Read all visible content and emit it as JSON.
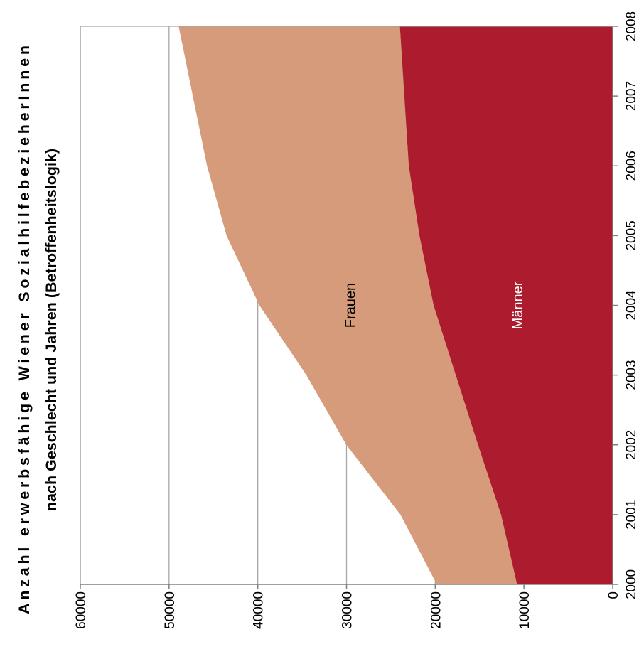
{
  "chart_data": {
    "type": "area",
    "orientation": "rotated-90-clockwise",
    "title_lines": [
      "Anzahl erwerbsfähige Wiener SozialhilfebezieherInnen",
      "nach Geschlecht und Jahren (Betroffenheitslogik)"
    ],
    "xlabel": "",
    "ylabel": "",
    "stacked": true,
    "x": [
      2000,
      2001,
      2002,
      2003,
      2004,
      2005,
      2006,
      2007,
      2008
    ],
    "x_tick_labels": [
      "2000",
      "2001",
      "2002",
      "2003",
      "2004",
      "2005",
      "2006",
      "2007",
      "2008"
    ],
    "ylim": [
      0,
      60000
    ],
    "y_ticks": [
      0,
      10000,
      20000,
      30000,
      40000,
      50000,
      60000
    ],
    "y_tick_labels": [
      "0",
      "10000",
      "20000",
      "30000",
      "40000",
      "50000",
      "60000"
    ],
    "grid": true,
    "series": [
      {
        "name": "Männer",
        "values": [
          10800,
          12600,
          15200,
          17700,
          20200,
          21800,
          23000,
          23500,
          24000
        ],
        "color": "#ad1c2e",
        "label_color": "#ffffff"
      },
      {
        "name": "Frauen",
        "values": [
          9000,
          11300,
          14800,
          16800,
          19600,
          21700,
          22700,
          23800,
          24900
        ],
        "color": "#d69b7a",
        "label_color": "#000000"
      }
    ],
    "colors": {
      "background": "#ffffff",
      "grid": "#a6a6a6",
      "axis": "#808080"
    }
  }
}
